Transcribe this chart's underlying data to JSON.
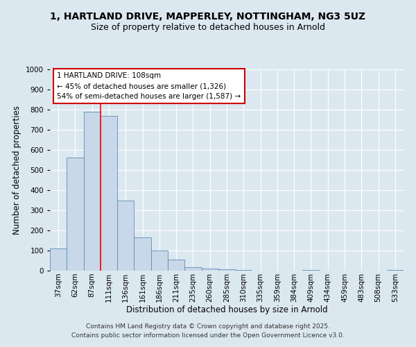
{
  "title_line1": "1, HARTLAND DRIVE, MAPPERLEY, NOTTINGHAM, NG3 5UZ",
  "title_line2": "Size of property relative to detached houses in Arnold",
  "xlabel": "Distribution of detached houses by size in Arnold",
  "ylabel": "Number of detached properties",
  "bar_labels": [
    "37sqm",
    "62sqm",
    "87sqm",
    "111sqm",
    "136sqm",
    "161sqm",
    "186sqm",
    "211sqm",
    "235sqm",
    "260sqm",
    "285sqm",
    "310sqm",
    "335sqm",
    "359sqm",
    "384sqm",
    "409sqm",
    "434sqm",
    "459sqm",
    "483sqm",
    "508sqm",
    "533sqm"
  ],
  "bar_values": [
    112,
    562,
    790,
    770,
    350,
    165,
    100,
    55,
    18,
    12,
    8,
    5,
    0,
    0,
    0,
    3,
    0,
    0,
    0,
    0,
    3
  ],
  "bar_color": "#c8d8e8",
  "bar_edge_color": "#5b8db8",
  "red_line_x": 2.5,
  "annotation_title": "1 HARTLAND DRIVE: 108sqm",
  "annotation_line2": "← 45% of detached houses are smaller (1,326)",
  "annotation_line3": "54% of semi-detached houses are larger (1,587) →",
  "annotation_box_facecolor": "#ffffff",
  "annotation_box_edge": "#cc0000",
  "ylim": [
    0,
    1000
  ],
  "yticks": [
    0,
    100,
    200,
    300,
    400,
    500,
    600,
    700,
    800,
    900,
    1000
  ],
  "footer_line1": "Contains HM Land Registry data © Crown copyright and database right 2025.",
  "footer_line2": "Contains public sector information licensed under the Open Government Licence v3.0.",
  "bg_color": "#dce8f0",
  "plot_bg_color": "#dce8f0",
  "grid_color": "#ffffff",
  "title_fontsize": 10,
  "subtitle_fontsize": 9,
  "axis_label_fontsize": 8.5,
  "tick_fontsize": 7.5,
  "annotation_fontsize": 7.5,
  "footer_fontsize": 6.5
}
